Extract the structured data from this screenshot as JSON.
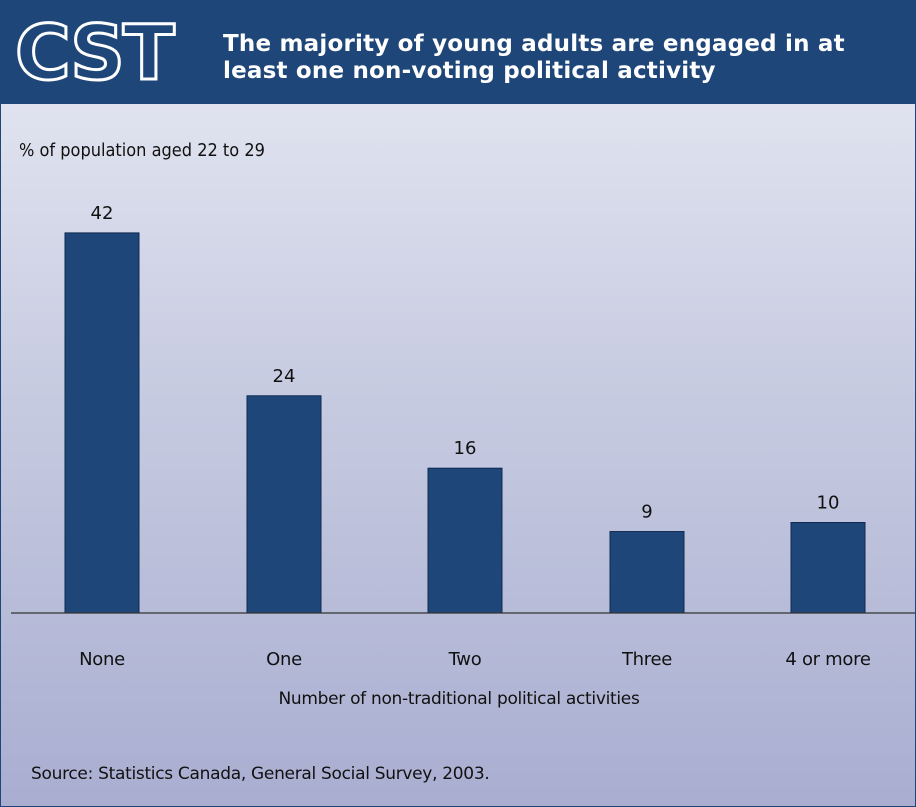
{
  "header": {
    "logo_text": "CST",
    "title": "The majority of young adults are engaged in at least one non-voting political activity"
  },
  "chart_data": {
    "type": "bar",
    "units_label": "% of population aged 22 to 29",
    "categories": [
      "None",
      "One",
      "Two",
      "Three",
      "4 or more"
    ],
    "values": [
      42,
      24,
      16,
      9,
      10
    ],
    "xlabel": "Number of non-traditional political activities",
    "ylabel": "",
    "ylim": [
      0,
      45
    ],
    "grid": false,
    "bar_color": "#1f4678",
    "data_labels": [
      "42",
      "24",
      "16",
      "9",
      "10"
    ]
  },
  "source": "Source: Statistics Canada, General Social Survey, 2003.",
  "colors": {
    "header_background": "#1f4678",
    "bar": "#1f4678",
    "text": "#111111"
  }
}
